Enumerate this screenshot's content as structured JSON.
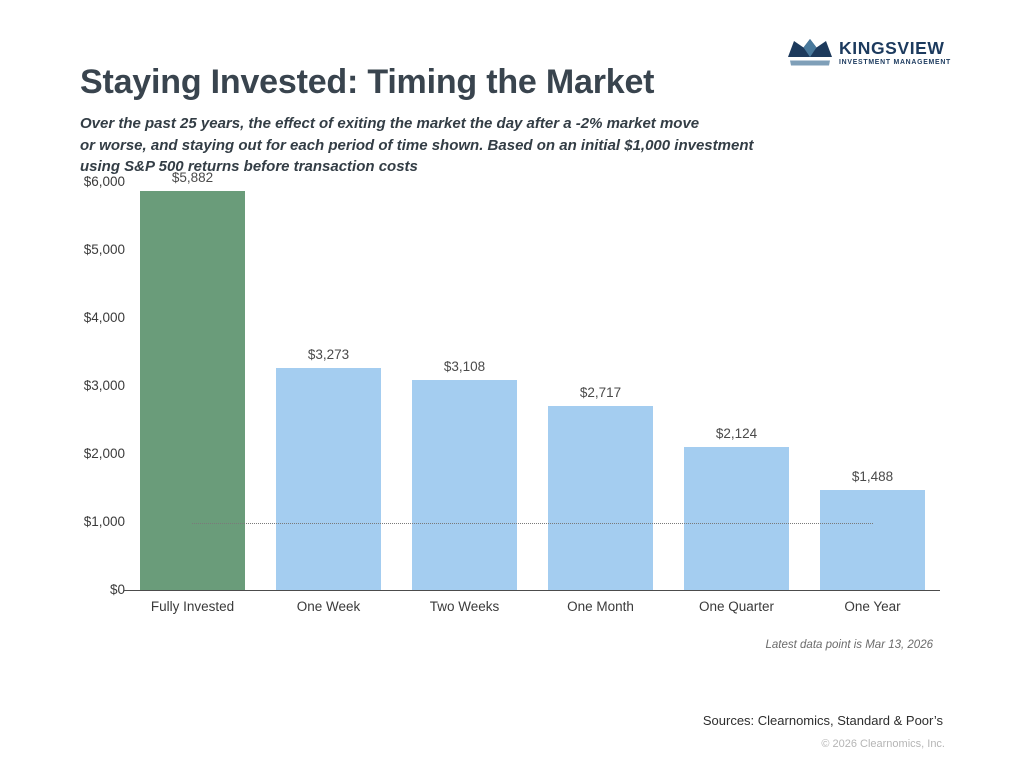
{
  "logo": {
    "name": "KINGSVIEW",
    "tagline": "INVESTMENT MANAGEMENT",
    "colors": {
      "navy": "#1d3a5c",
      "facet": "#49799c",
      "base": "#7f9fb8"
    }
  },
  "header": {
    "title": "Staying Invested: Timing the Market",
    "subtitle_lines": [
      "Over the past 25 years, the effect of exiting the market the day after a -2% market move",
      "or worse, and staying out for each period of time shown. Based on an initial $1,000 investment",
      "using S&P 500 returns before transaction costs"
    ]
  },
  "chart_data": {
    "type": "bar",
    "title": "Staying Invested: Timing the Market",
    "categories": [
      "Fully Invested",
      "One Week",
      "Two Weeks",
      "One Month",
      "One Quarter",
      "One Year"
    ],
    "values": [
      5882,
      3273,
      3108,
      2717,
      2124,
      1488
    ],
    "value_labels": [
      "$5,882",
      "$3,273",
      "$3,108",
      "$2,717",
      "$2,124",
      "$1,488"
    ],
    "bar_colors": [
      "#6a9c7a",
      "#a4cdf0",
      "#a4cdf0",
      "#a4cdf0",
      "#a4cdf0",
      "#a4cdf0"
    ],
    "y_ticks": [
      "$6,000",
      "$5,000",
      "$4,000",
      "$3,000",
      "$2,000",
      "$1,000",
      "$0"
    ],
    "y_tick_values": [
      6000,
      5000,
      4000,
      3000,
      2000,
      1000,
      0
    ],
    "ylim": [
      0,
      6000
    ],
    "xlabel": "",
    "ylabel": "",
    "grid": false,
    "legend": false,
    "reference_line": {
      "value": 1000,
      "style": "dotted",
      "meaning": "initial $1,000 investment"
    }
  },
  "footnotes": {
    "latest": "Latest data point is Mar 13, 2026",
    "sources": "Sources: Clearnomics, Standard & Poor’s",
    "copyright": "© 2026 Clearnomics, Inc."
  }
}
